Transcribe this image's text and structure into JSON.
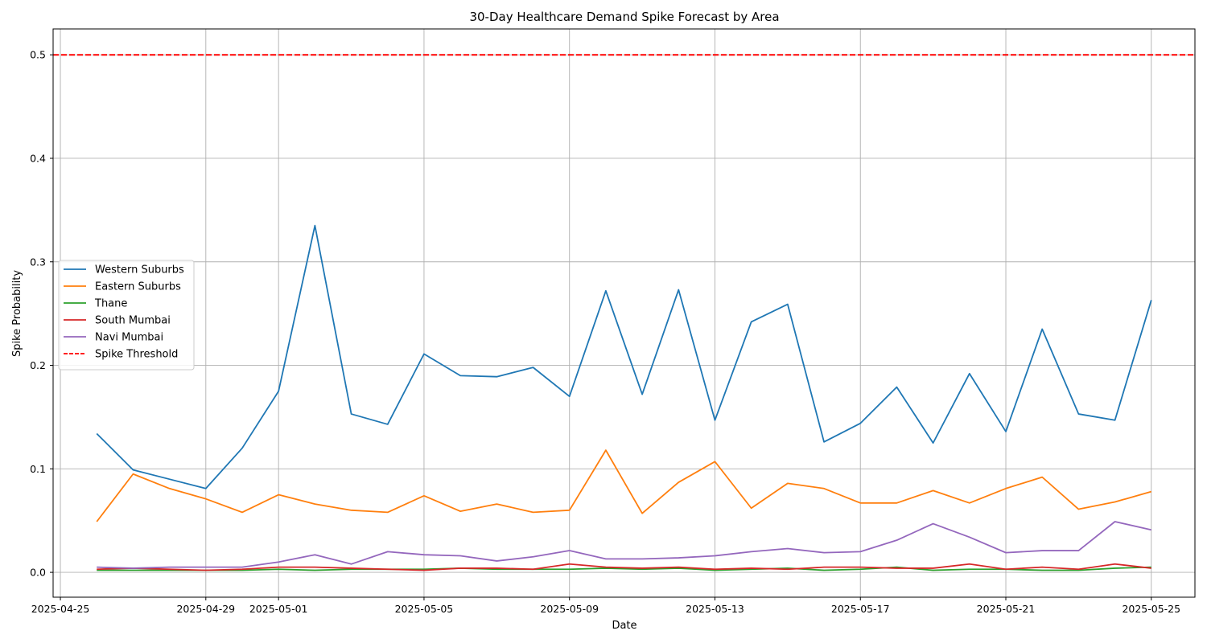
{
  "chart_data": {
    "type": "line",
    "title": "30-Day Healthcare Demand Spike Forecast by Area",
    "xlabel": "Date",
    "ylabel": "Spike Probability",
    "xlim": [
      "2025-04-24T19:12",
      "2025-05-26T04:48"
    ],
    "ylim": [
      -0.024,
      0.525
    ],
    "x_ticks": [
      "2025-04-25",
      "2025-04-29",
      "2025-05-01",
      "2025-05-05",
      "2025-05-09",
      "2025-05-13",
      "2025-05-17",
      "2025-05-21",
      "2025-05-25"
    ],
    "y_ticks": [
      0.0,
      0.1,
      0.2,
      0.3,
      0.4,
      0.5
    ],
    "y_tick_labels": [
      "0.0",
      "0.1",
      "0.2",
      "0.3",
      "0.4",
      "0.5"
    ],
    "grid": true,
    "legend_position": "center-left",
    "x": [
      "2025-04-26",
      "2025-04-27",
      "2025-04-28",
      "2025-04-29",
      "2025-04-30",
      "2025-05-01",
      "2025-05-02",
      "2025-05-03",
      "2025-05-04",
      "2025-05-05",
      "2025-05-06",
      "2025-05-07",
      "2025-05-08",
      "2025-05-09",
      "2025-05-10",
      "2025-05-11",
      "2025-05-12",
      "2025-05-13",
      "2025-05-14",
      "2025-05-15",
      "2025-05-16",
      "2025-05-17",
      "2025-05-18",
      "2025-05-19",
      "2025-05-20",
      "2025-05-21",
      "2025-05-22",
      "2025-05-23",
      "2025-05-24",
      "2025-05-25"
    ],
    "series": [
      {
        "name": "Western Suburbs",
        "color": "#1f77b4",
        "values": [
          0.134,
          0.099,
          0.09,
          0.081,
          0.12,
          0.175,
          0.335,
          0.153,
          0.143,
          0.211,
          0.19,
          0.189,
          0.198,
          0.17,
          0.272,
          0.172,
          0.273,
          0.147,
          0.242,
          0.259,
          0.126,
          0.144,
          0.179,
          0.125,
          0.192,
          0.136,
          0.235,
          0.153,
          0.147,
          0.263
        ]
      },
      {
        "name": "Eastern Suburbs",
        "color": "#ff7f0e",
        "values": [
          0.049,
          0.095,
          0.081,
          0.071,
          0.058,
          0.075,
          0.066,
          0.06,
          0.058,
          0.074,
          0.059,
          0.066,
          0.058,
          0.06,
          0.118,
          0.057,
          0.087,
          0.107,
          0.062,
          0.086,
          0.081,
          0.067,
          0.067,
          0.079,
          0.067,
          0.081,
          0.092,
          0.061,
          0.068,
          0.078
        ]
      },
      {
        "name": "Thane",
        "color": "#2ca02c",
        "values": [
          0.002,
          0.002,
          0.002,
          0.002,
          0.002,
          0.003,
          0.002,
          0.003,
          0.003,
          0.003,
          0.004,
          0.003,
          0.003,
          0.003,
          0.004,
          0.003,
          0.004,
          0.002,
          0.003,
          0.004,
          0.002,
          0.003,
          0.005,
          0.002,
          0.003,
          0.003,
          0.002,
          0.002,
          0.004,
          0.005
        ]
      },
      {
        "name": "South Mumbai",
        "color": "#d62728",
        "values": [
          0.003,
          0.004,
          0.003,
          0.002,
          0.003,
          0.005,
          0.005,
          0.004,
          0.003,
          0.002,
          0.004,
          0.004,
          0.003,
          0.008,
          0.005,
          0.004,
          0.005,
          0.003,
          0.004,
          0.003,
          0.005,
          0.005,
          0.004,
          0.004,
          0.008,
          0.003,
          0.005,
          0.003,
          0.008,
          0.004
        ]
      },
      {
        "name": "Navi Mumbai",
        "color": "#9467bd",
        "values": [
          0.005,
          0.004,
          0.005,
          0.005,
          0.005,
          0.01,
          0.017,
          0.008,
          0.02,
          0.017,
          0.016,
          0.011,
          0.015,
          0.021,
          0.013,
          0.013,
          0.014,
          0.016,
          0.02,
          0.023,
          0.019,
          0.02,
          0.031,
          0.047,
          0.034,
          0.019,
          0.021,
          0.021,
          0.049,
          0.041
        ]
      }
    ],
    "threshold": {
      "name": "Spike Threshold",
      "value": 0.5,
      "color": "#ff0000",
      "style": "dashed"
    }
  }
}
